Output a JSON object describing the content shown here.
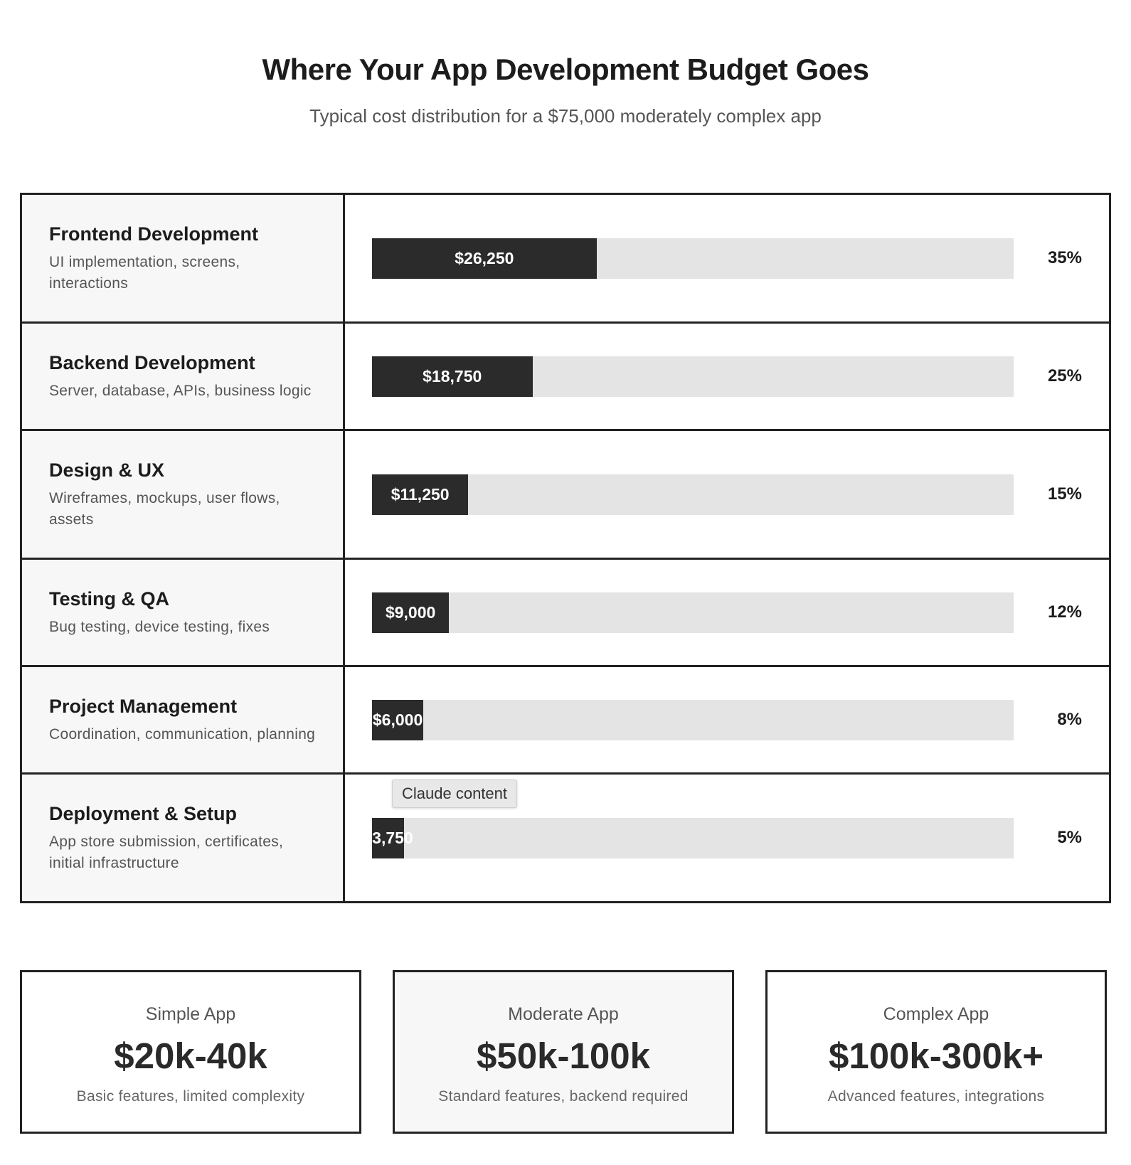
{
  "chart_data": {
    "type": "bar",
    "title": "Where Your App Development Budget Goes",
    "subtitle": "Typical cost distribution for a $75,000 moderately complex app",
    "categories": [
      "Frontend Development",
      "Backend Development",
      "Design & UX",
      "Testing & QA",
      "Project Management",
      "Deployment & Setup"
    ],
    "descriptions": [
      "UI implementation, screens, interactions",
      "Server, database, APIs, business logic",
      "Wireframes, mockups, user flows, assets",
      "Bug testing, device testing, fixes",
      "Coordination, communication, planning",
      "App store submission, certificates, initial infrastructure"
    ],
    "values": [
      26250,
      18750,
      11250,
      9000,
      6000,
      3750
    ],
    "value_labels": [
      "$26,250",
      "$18,750",
      "$11,250",
      "$9,000",
      "$6,000",
      "$3,750"
    ],
    "percents": [
      35,
      25,
      15,
      12,
      8,
      5
    ],
    "percent_labels": [
      "35%",
      "25%",
      "15%",
      "12%",
      "8%",
      "5%"
    ],
    "xlim": [
      0,
      75000
    ],
    "color": "#2b2b2b",
    "track_color": "#e4e4e4",
    "tooltip": "Claude content",
    "tiers": [
      {
        "name": "Simple App",
        "range": "$20k-40k",
        "description": "Basic features, limited complexity"
      },
      {
        "name": "Moderate App",
        "range": "$50k-100k",
        "description": "Standard features, backend required"
      },
      {
        "name": "Complex App",
        "range": "$100k-300k+",
        "description": "Advanced features, integrations"
      }
    ]
  }
}
